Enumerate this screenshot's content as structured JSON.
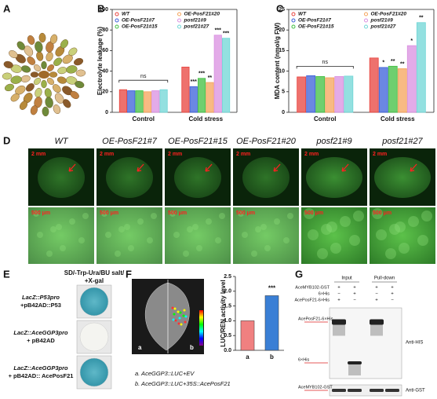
{
  "panel_labels": [
    "A",
    "B",
    "C",
    "D",
    "E",
    "F",
    "G"
  ],
  "chart_data": [
    {
      "type": "bar",
      "y_label": "Electrolyte leakage (%)",
      "categories": [
        "Control",
        "Cold stress"
      ],
      "series": [
        {
          "name": "WT",
          "color": "#e8413c",
          "values": [
            22,
            44
          ],
          "stars": [
            null,
            null
          ]
        },
        {
          "name": "OE-PosF21#7",
          "color": "#3a5fd8",
          "values": [
            21,
            25
          ],
          "stars": [
            null,
            "***"
          ]
        },
        {
          "name": "OE-PosF21#15",
          "color": "#3fbf3f",
          "values": [
            21,
            33
          ],
          "stars": [
            null,
            "***"
          ]
        },
        {
          "name": "OE-PosF21#20",
          "color": "#f5a35a",
          "values": [
            20,
            29
          ],
          "stars": [
            null,
            "**"
          ]
        },
        {
          "name": "posf21#9",
          "color": "#d98fe0",
          "values": [
            21,
            75
          ],
          "stars": [
            null,
            "***"
          ]
        },
        {
          "name": "posf21#27",
          "color": "#6fd6d6",
          "values": [
            22,
            72
          ],
          "stars": [
            null,
            "***"
          ]
        }
      ],
      "ylim": [
        0,
        100
      ],
      "yticks": [
        0,
        20,
        40,
        60,
        80,
        100
      ],
      "annotation": "ns"
    },
    {
      "type": "bar",
      "y_label": "MDA content (nmol/g FW)",
      "categories": [
        "Control",
        "Cold stress"
      ],
      "series": [
        {
          "name": "WT",
          "color": "#e8413c",
          "values": [
            8.6,
            13.2
          ],
          "stars": [
            null,
            null
          ]
        },
        {
          "name": "OE-PosF21#7",
          "color": "#3a5fd8",
          "values": [
            8.9,
            10.9
          ],
          "stars": [
            null,
            "*"
          ]
        },
        {
          "name": "OE-PosF21#15",
          "color": "#3fbf3f",
          "values": [
            8.7,
            11.2
          ],
          "stars": [
            null,
            "**"
          ]
        },
        {
          "name": "OE-PosF21#20",
          "color": "#f5a35a",
          "values": [
            8.4,
            10.6
          ],
          "stars": [
            null,
            "**"
          ]
        },
        {
          "name": "posf21#9",
          "color": "#d98fe0",
          "values": [
            8.7,
            16.2
          ],
          "stars": [
            null,
            "*"
          ]
        },
        {
          "name": "posf21#27",
          "color": "#6fd6d6",
          "values": [
            8.8,
            21.8
          ],
          "stars": [
            null,
            "**"
          ]
        }
      ],
      "ylim": [
        0,
        25
      ],
      "yticks": [
        0,
        5,
        10,
        15,
        20,
        25
      ],
      "annotation": "ns"
    },
    {
      "type": "bar",
      "y_label": "LUC/REN activity level",
      "categories": [
        "a",
        "b"
      ],
      "values": [
        1.0,
        1.85
      ],
      "colors": [
        "#f08080",
        "#3a7fd5"
      ],
      "stars": [
        null,
        "***"
      ],
      "ylim": [
        0,
        2.5
      ],
      "yticks": [
        {
          "value": 0,
          "label": "0.0"
        },
        0.5,
        {
          "value": 1,
          "label": "1.0"
        },
        1.5,
        {
          "value": 2,
          "label": "2.0"
        },
        2.5
      ]
    }
  ],
  "panel_d": {
    "columns": [
      {
        "label": "WT",
        "scale_top": "2 mm",
        "scale_bottom": "500 μm"
      },
      {
        "label": "OE-PosF21#7",
        "scale_top": "2 mm",
        "scale_bottom": "500 μm"
      },
      {
        "label": "OE-PosF21#15",
        "scale_top": "2 mm",
        "scale_bottom": "500 μm"
      },
      {
        "label": "OE-PosF21#20",
        "scale_top": "2 mm",
        "scale_bottom": "500 μm"
      },
      {
        "label": "posf21#9",
        "scale_top": "2 mm",
        "scale_bottom": "500 μm"
      },
      {
        "label": "posf21#27",
        "scale_top": "2 mm",
        "scale_bottom": "500 μm"
      }
    ]
  },
  "panel_e": {
    "title": [
      "SD/-Trp-Ura/BU salt/",
      "+X-gal"
    ],
    "rows": [
      [
        "LacZ::P53pro",
        "+pB42AD::P53"
      ],
      [
        "LacZ::AceGGP3pro",
        "+ pB42AD"
      ],
      [
        "LacZ::AceGGP3pro",
        "+ pB42AD:: AcePosF21"
      ]
    ]
  },
  "panel_f": {
    "image_labels": [
      "a",
      "b"
    ],
    "legend": [
      "a. AceGGP3::LUC+EV",
      "b. AceGGP3::LUC+35S::AcePosF21"
    ]
  },
  "panel_g": {
    "headers": [
      "Input",
      "Pull-down"
    ],
    "rows": [
      {
        "label": "AceMYB102-GST",
        "signs": [
          "+",
          "+",
          "+",
          "+"
        ]
      },
      {
        "label": "6×His",
        "signs": [
          "−",
          "+",
          "−",
          "+"
        ]
      },
      {
        "label": "AcePosF21-6×His",
        "signs": [
          "+",
          "−",
          "+",
          "−"
        ]
      }
    ],
    "band_labels": [
      "AcePosF21-6×His",
      "6×His",
      "AceMYB102-GST"
    ],
    "antibodies": [
      "Anti-HIS",
      "Anti-GST"
    ]
  }
}
